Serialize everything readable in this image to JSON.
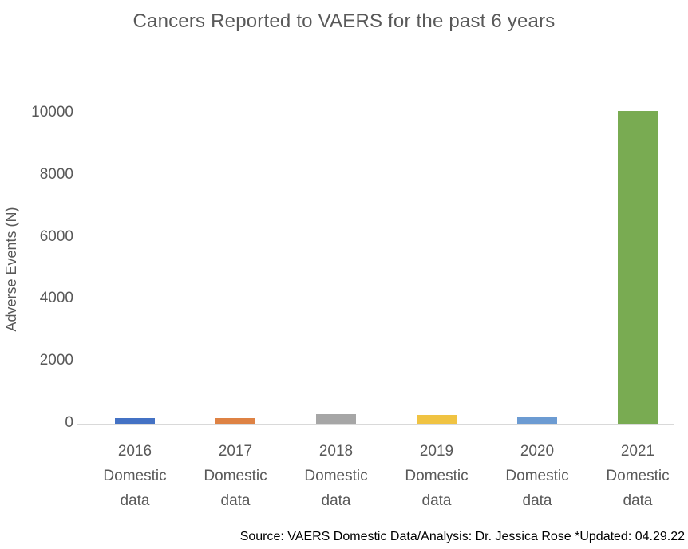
{
  "title": "Cancers Reported to VAERS for the past 6 years",
  "source_note": "Source: VAERS Domestic Data/Analysis: Dr. Jessica Rose *Updated: 04.29.22",
  "colors": {
    "title_text": "#595959",
    "axis_text": "#595959",
    "axis_line": "#d9d9d9",
    "source_text": "#000000",
    "background": "#ffffff"
  },
  "chart_data": {
    "type": "bar",
    "title": "Cancers Reported to VAERS for the past 6 years",
    "xlabel": "",
    "ylabel": "Adverse Events (N)",
    "categories": [
      "2016 Domestic data",
      "2017 Domestic data",
      "2018 Domestic data",
      "2019 Domestic data",
      "2020 Domestic data",
      "2021 Domestic data"
    ],
    "category_label_lines": [
      [
        "2016",
        "Domestic",
        "data"
      ],
      [
        "2017",
        "Domestic",
        "data"
      ],
      [
        "2018",
        "Domestic",
        "data"
      ],
      [
        "2019",
        "Domestic",
        "data"
      ],
      [
        "2020",
        "Domestic",
        "data"
      ],
      [
        "2021",
        "Domestic",
        "data"
      ]
    ],
    "values": [
      200,
      200,
      330,
      320,
      240,
      10100
    ],
    "bar_colors": [
      "#4472c4",
      "#de8244",
      "#a6a6a6",
      "#f0c342",
      "#6c9bd2",
      "#79ab52"
    ],
    "ylim": [
      0,
      10000
    ],
    "yticks": [
      0,
      2000,
      4000,
      6000,
      8000,
      10000
    ],
    "grid": false,
    "legend_position": "none"
  }
}
